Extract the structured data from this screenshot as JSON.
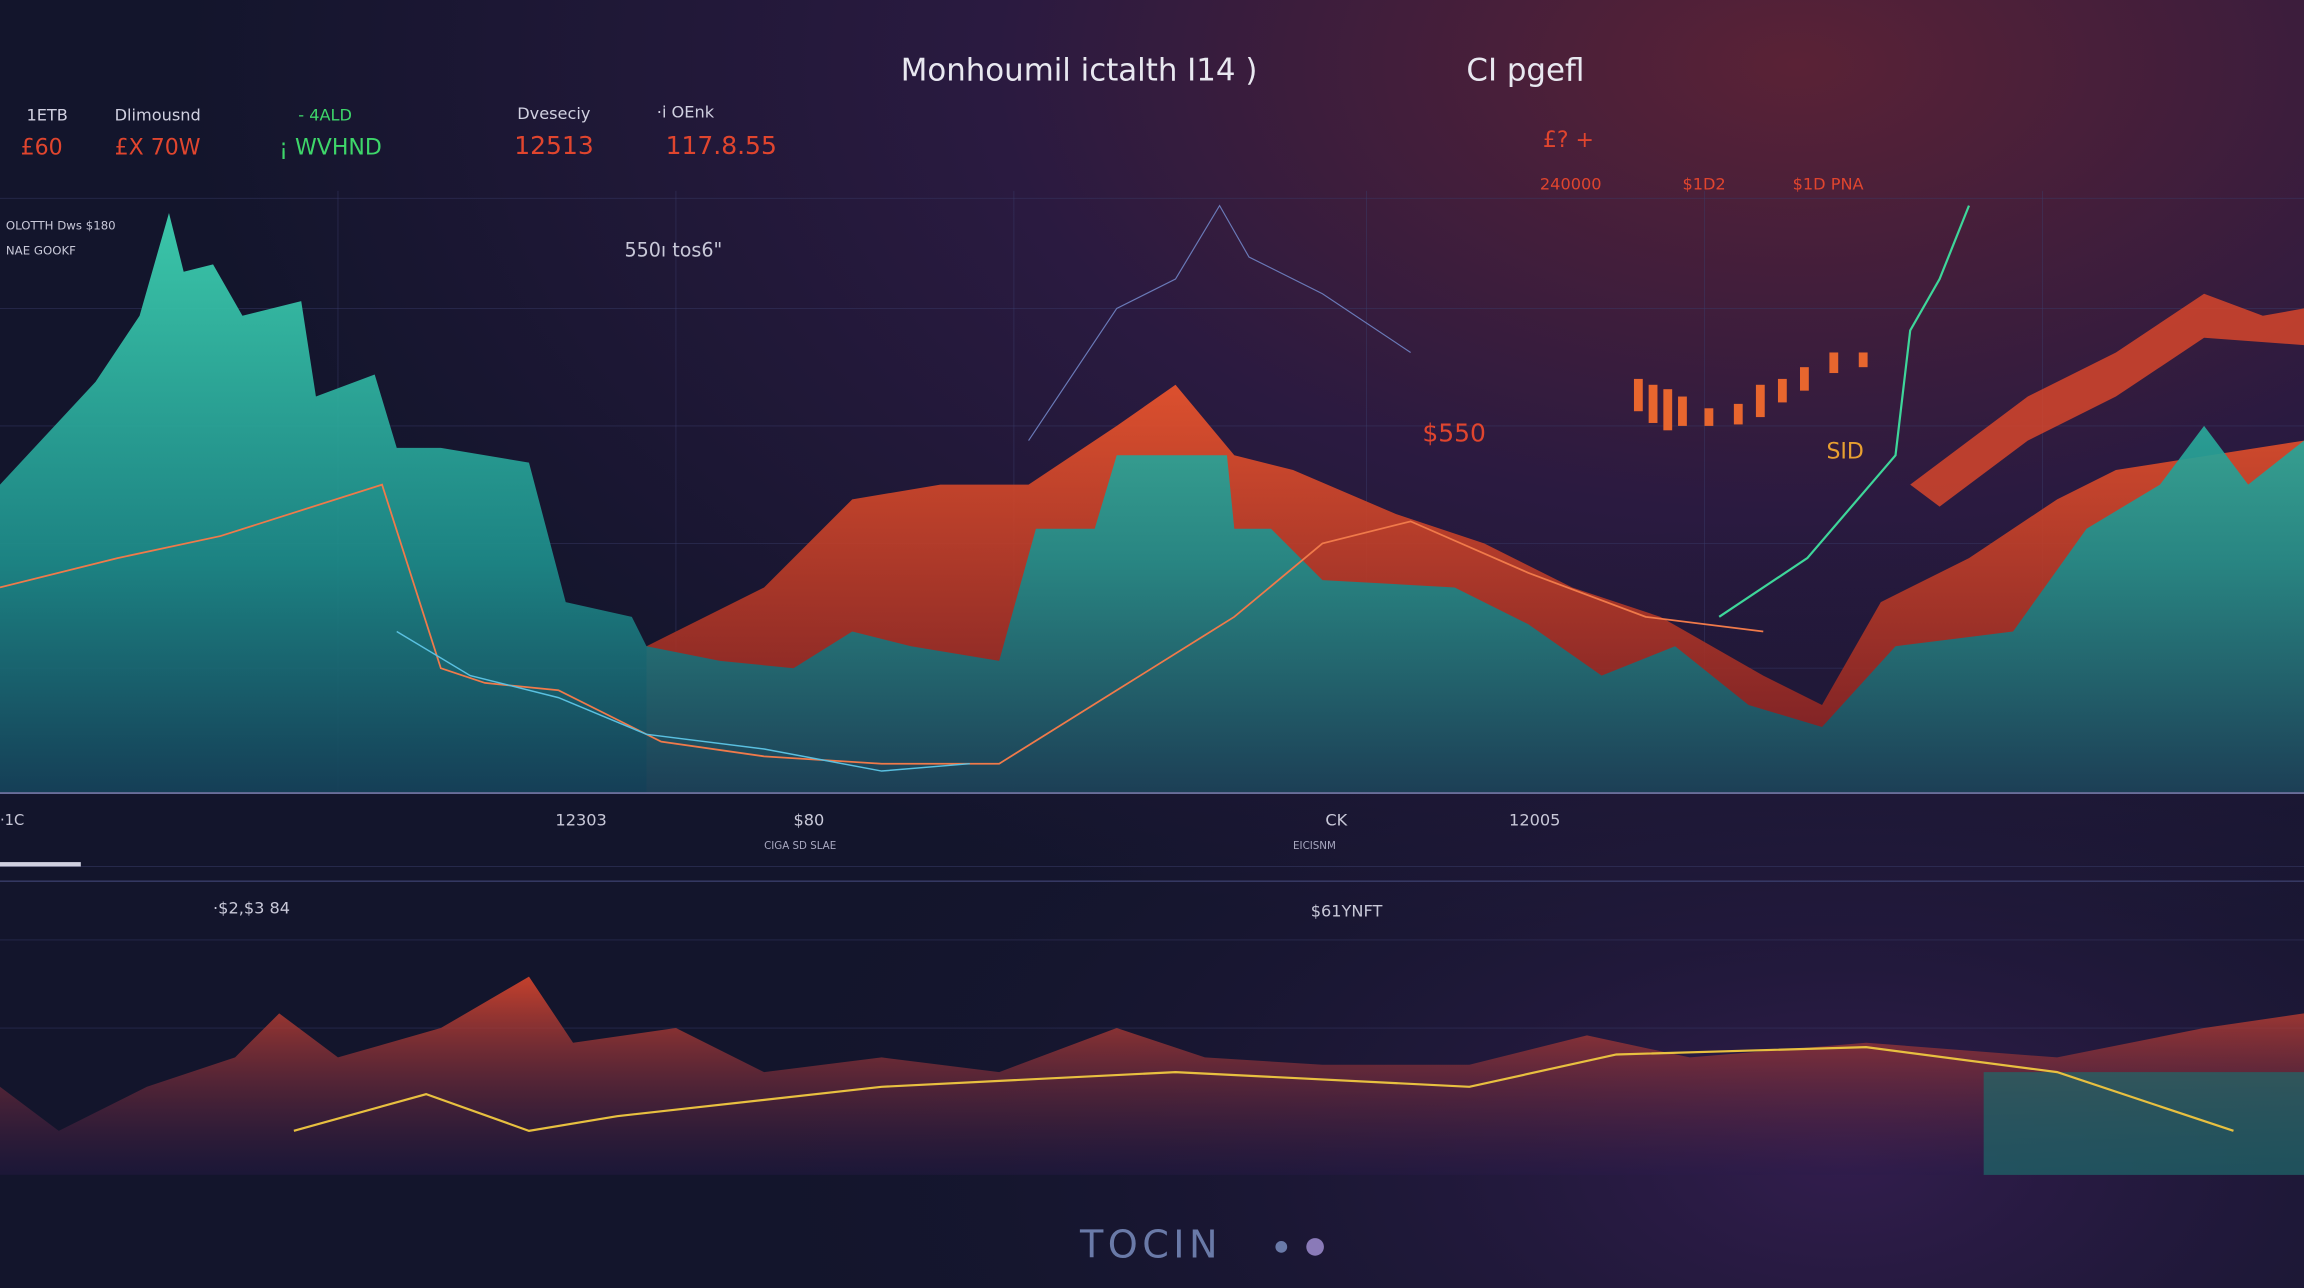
{
  "header": {
    "title": "Monhoumil ictalth I14 )",
    "subtitle": "CI pgefl"
  },
  "tickers": [
    {
      "label": "1ETB",
      "value": "£60"
    },
    {
      "label": "Dlimousnd",
      "value": "£X 70W"
    },
    {
      "label": "- 4ALD",
      "value": "¡ WVHND"
    },
    {
      "label": "Dveseciy",
      "value": "12513"
    },
    {
      "label": "·i OEnk",
      "value": "117.8.55"
    }
  ],
  "side_notes": [
    "OLOTTH Dws $180",
    "NAE GOOKF"
  ],
  "chart_note": "550ı tos6\"",
  "right_panel": {
    "top": "£? +",
    "figures": [
      "240000",
      "$1D2",
      "$1D PNA"
    ]
  },
  "annotations": [
    "$550",
    "SID"
  ],
  "strip": [
    "·1C",
    "12303",
    "$80",
    "CIGA SD SLAE",
    "CK",
    "EICISNM",
    "12005"
  ],
  "lower_labels": [
    "·$2,$3 84",
    "$61YNFT"
  ],
  "footer": "TOCIN"
}
